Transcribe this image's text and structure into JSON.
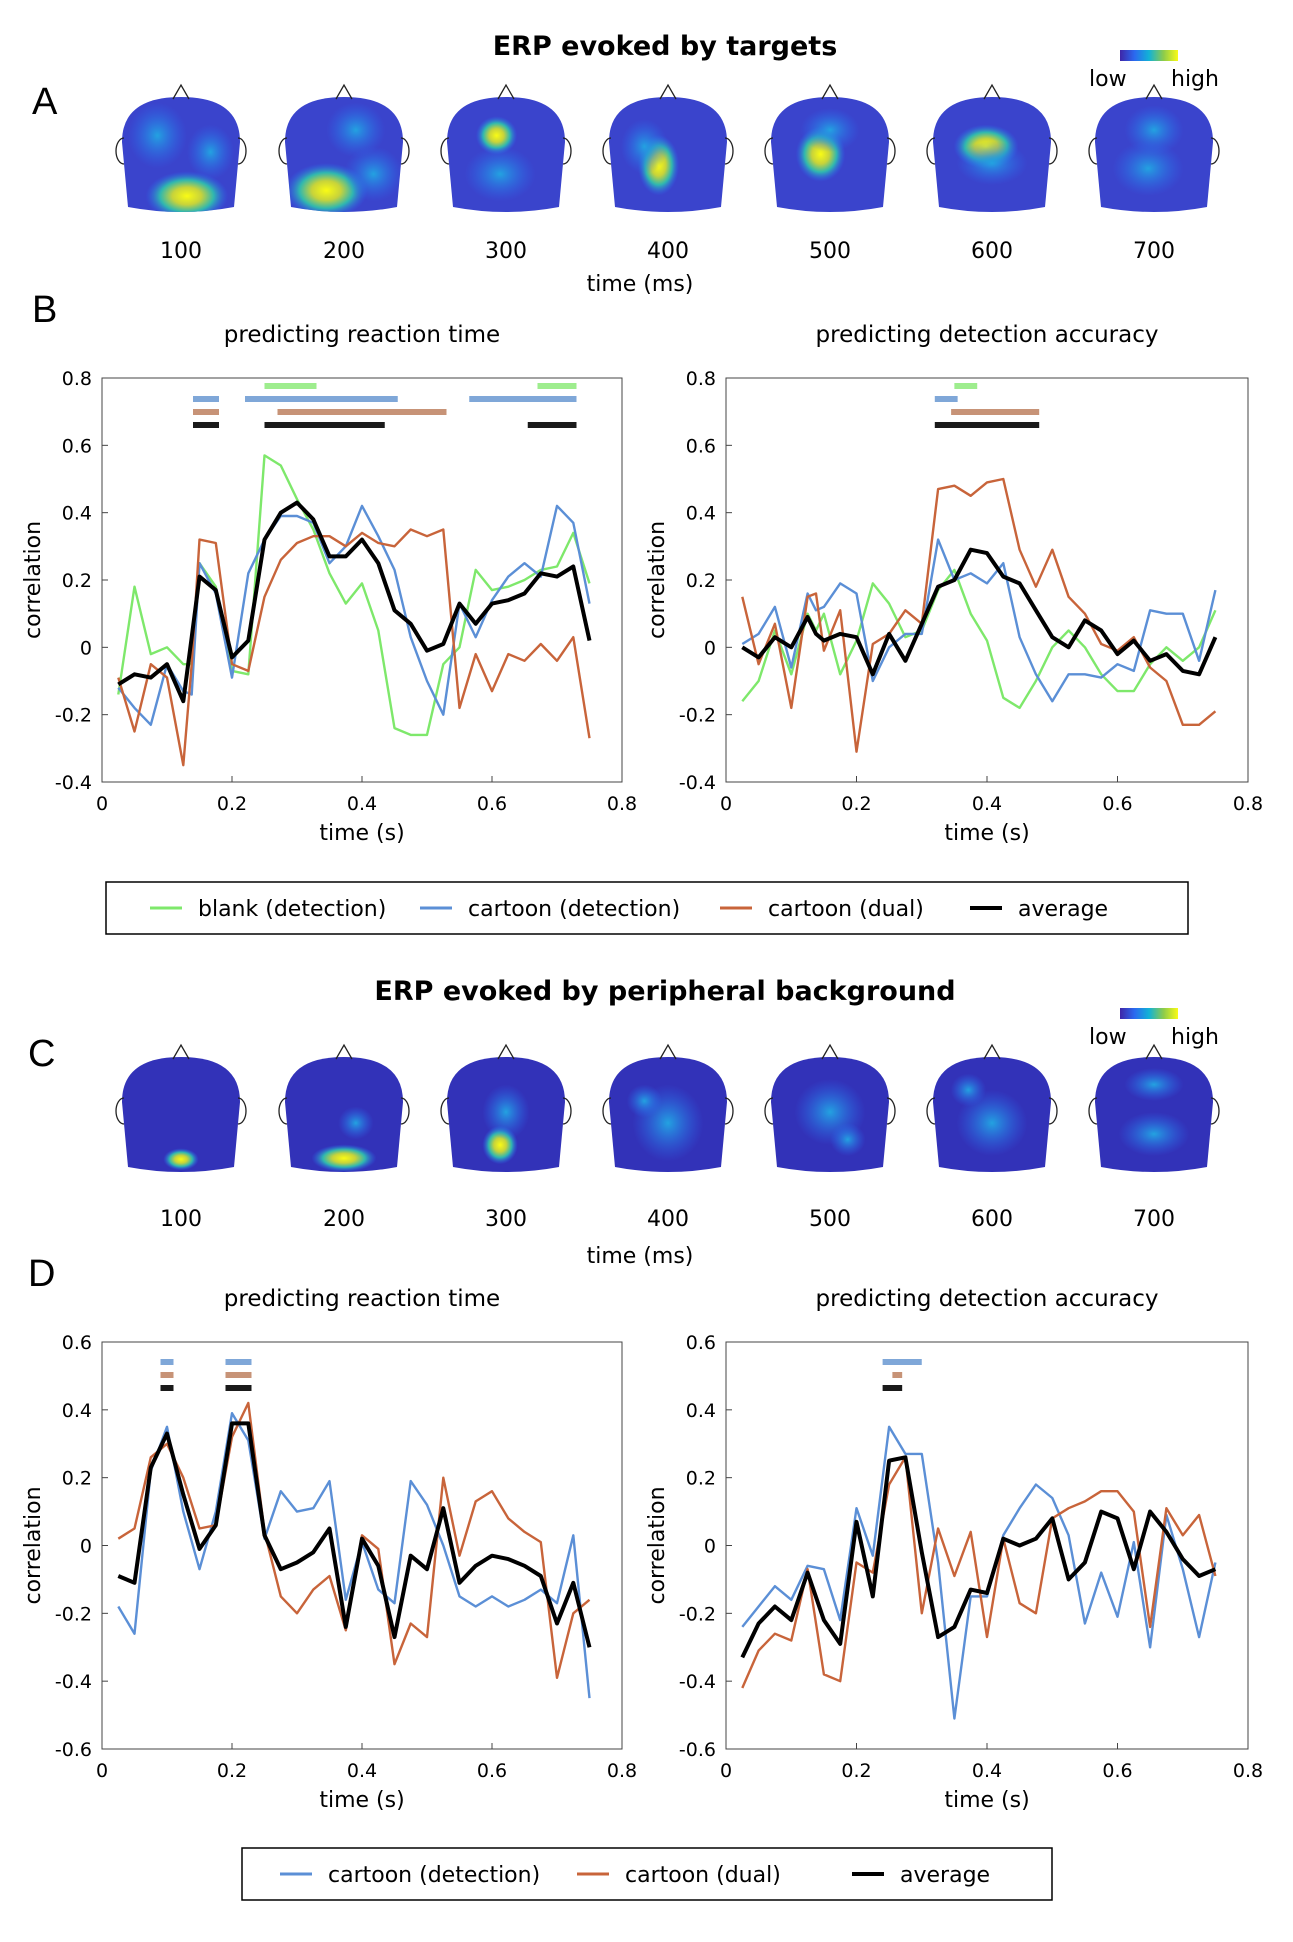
{
  "colors": {
    "blank": "#7ee86b",
    "cartoon_detection": "#5b8fd6",
    "cartoon_dual": "#c8643a",
    "average": "#000000",
    "cartoon_detection_sig": "#7fa7d8",
    "cartoon_dual_sig": "#c79377",
    "average_sig": "#1a1a1a",
    "blank_sig": "#9eed8e"
  },
  "sections": [
    {
      "title": "ERP evoked by targets",
      "topo_letter": "A",
      "plot_letter": "B",
      "colorbar": {
        "low": "low",
        "high": "high"
      },
      "time_labels": [
        "100",
        "200",
        "300",
        "400",
        "500",
        "600",
        "700"
      ],
      "time_axis_label": "time (ms)",
      "legend": [
        "blank (detection)",
        "cartoon (detection)",
        "cartoon (dual)",
        "average"
      ]
    },
    {
      "title": "ERP evoked by peripheral background",
      "topo_letter": "C",
      "plot_letter": "D",
      "colorbar": {
        "low": "low",
        "high": "high"
      },
      "time_labels": [
        "100",
        "200",
        "300",
        "400",
        "500",
        "600",
        "700"
      ],
      "time_axis_label": "time (ms)",
      "legend": [
        "cartoon (detection)",
        "cartoon (dual)",
        "average"
      ]
    }
  ],
  "chart_data": [
    {
      "type": "line",
      "title": "predicting reaction time",
      "xlabel": "time (s)",
      "ylabel": "correlation",
      "xlim": [
        0,
        0.8
      ],
      "ylim": [
        -0.4,
        0.8
      ],
      "xticks": [
        0,
        0.2,
        0.4,
        0.6,
        0.8
      ],
      "yticks": [
        -0.4,
        -0.2,
        0,
        0.2,
        0.4,
        0.6,
        0.8
      ],
      "x": [
        0.025,
        0.05,
        0.075,
        0.1,
        0.125,
        0.138,
        0.15,
        0.175,
        0.2,
        0.225,
        0.25,
        0.275,
        0.3,
        0.325,
        0.35,
        0.375,
        0.4,
        0.425,
        0.45,
        0.475,
        0.5,
        0.525,
        0.55,
        0.575,
        0.6,
        0.625,
        0.65,
        0.675,
        0.7,
        0.725,
        0.75
      ],
      "series": [
        {
          "name": "blank (detection)",
          "key": "blank",
          "values": [
            -0.14,
            0.18,
            -0.02,
            0.0,
            -0.05,
            -0.05,
            0.25,
            0.18,
            -0.07,
            -0.08,
            0.57,
            0.54,
            0.44,
            0.35,
            0.22,
            0.13,
            0.19,
            0.05,
            -0.24,
            -0.26,
            -0.26,
            -0.05,
            0.0,
            0.23,
            0.17,
            0.18,
            0.2,
            0.23,
            0.24,
            0.34,
            0.19
          ]
        },
        {
          "name": "cartoon (detection)",
          "key": "cartoon_detection",
          "values": [
            -0.12,
            -0.18,
            -0.23,
            -0.05,
            -0.13,
            -0.14,
            0.25,
            0.16,
            -0.09,
            0.22,
            0.32,
            0.39,
            0.39,
            0.37,
            0.25,
            0.3,
            0.42,
            0.33,
            0.23,
            0.03,
            -0.1,
            -0.2,
            0.13,
            0.03,
            0.14,
            0.21,
            0.25,
            0.21,
            0.42,
            0.37,
            0.13
          ]
        },
        {
          "name": "cartoon (dual)",
          "key": "cartoon_dual",
          "values": [
            -0.09,
            -0.25,
            -0.05,
            -0.09,
            -0.35,
            -0.05,
            0.32,
            0.31,
            -0.05,
            -0.07,
            0.15,
            0.26,
            0.31,
            0.33,
            0.33,
            0.3,
            0.34,
            0.31,
            0.3,
            0.35,
            0.33,
            0.35,
            -0.18,
            -0.02,
            -0.13,
            -0.02,
            -0.04,
            0.01,
            -0.04,
            0.03,
            -0.27
          ]
        },
        {
          "name": "average",
          "key": "average",
          "values": [
            -0.11,
            -0.08,
            -0.09,
            -0.05,
            -0.16,
            0.03,
            0.21,
            0.17,
            -0.03,
            0.02,
            0.32,
            0.4,
            0.43,
            0.38,
            0.27,
            0.27,
            0.32,
            0.25,
            0.11,
            0.07,
            -0.01,
            0.01,
            0.13,
            0.07,
            0.13,
            0.14,
            0.16,
            0.22,
            0.21,
            0.24,
            0.02
          ]
        }
      ],
      "significance": [
        {
          "key": "blank",
          "ranges": [
            [
              0.25,
              0.33
            ],
            [
              0.67,
              0.73
            ]
          ]
        },
        {
          "key": "cartoon_detection",
          "ranges": [
            [
              0.14,
              0.18
            ],
            [
              0.22,
              0.455
            ],
            [
              0.565,
              0.73
            ]
          ]
        },
        {
          "key": "cartoon_dual",
          "ranges": [
            [
              0.14,
              0.18
            ],
            [
              0.27,
              0.53
            ]
          ]
        },
        {
          "key": "average",
          "ranges": [
            [
              0.14,
              0.18
            ],
            [
              0.25,
              0.435
            ],
            [
              0.655,
              0.73
            ]
          ]
        }
      ]
    },
    {
      "type": "line",
      "title": "predicting detection accuracy",
      "xlabel": "time (s)",
      "ylabel": "correlation",
      "xlim": [
        0,
        0.8
      ],
      "ylim": [
        -0.4,
        0.8
      ],
      "xticks": [
        0,
        0.2,
        0.4,
        0.6,
        0.8
      ],
      "yticks": [
        -0.4,
        -0.2,
        0,
        0.2,
        0.4,
        0.6,
        0.8
      ],
      "x": [
        0.025,
        0.05,
        0.075,
        0.1,
        0.125,
        0.138,
        0.15,
        0.175,
        0.2,
        0.225,
        0.25,
        0.275,
        0.3,
        0.325,
        0.35,
        0.375,
        0.4,
        0.425,
        0.45,
        0.475,
        0.5,
        0.525,
        0.55,
        0.575,
        0.6,
        0.625,
        0.65,
        0.675,
        0.7,
        0.725,
        0.75
      ],
      "series": [
        {
          "name": "blank (detection)",
          "key": "blank",
          "values": [
            -0.16,
            -0.1,
            0.05,
            -0.08,
            0.1,
            0.05,
            0.1,
            -0.08,
            0.02,
            0.19,
            0.13,
            0.03,
            0.05,
            0.17,
            0.23,
            0.1,
            0.02,
            -0.15,
            -0.18,
            -0.1,
            0.0,
            0.05,
            0.0,
            -0.08,
            -0.13,
            -0.13,
            -0.05,
            0.0,
            -0.04,
            0.0,
            0.11
          ]
        },
        {
          "name": "cartoon (detection)",
          "key": "cartoon_detection",
          "values": [
            0.01,
            0.04,
            0.12,
            -0.06,
            0.16,
            0.11,
            0.12,
            0.19,
            0.16,
            -0.1,
            0.0,
            0.04,
            0.04,
            0.32,
            0.2,
            0.22,
            0.19,
            0.25,
            0.03,
            -0.08,
            -0.16,
            -0.08,
            -0.08,
            -0.09,
            -0.05,
            -0.07,
            0.11,
            0.1,
            0.1,
            -0.04,
            0.17
          ]
        },
        {
          "name": "cartoon (dual)",
          "key": "cartoon_dual",
          "values": [
            0.15,
            -0.05,
            0.07,
            -0.18,
            0.15,
            0.16,
            -0.01,
            0.11,
            -0.31,
            0.01,
            0.04,
            0.11,
            0.07,
            0.47,
            0.48,
            0.45,
            0.49,
            0.5,
            0.29,
            0.18,
            0.29,
            0.15,
            0.1,
            0.01,
            -0.01,
            0.03,
            -0.06,
            -0.1,
            -0.23,
            -0.23,
            -0.19
          ]
        },
        {
          "name": "average",
          "key": "average",
          "values": [
            0.0,
            -0.03,
            0.03,
            0.0,
            0.09,
            0.04,
            0.02,
            0.04,
            0.03,
            -0.08,
            0.04,
            -0.04,
            0.07,
            0.18,
            0.2,
            0.29,
            0.28,
            0.21,
            0.19,
            0.11,
            0.03,
            0.0,
            0.08,
            0.05,
            -0.02,
            0.02,
            -0.04,
            -0.02,
            -0.07,
            -0.08,
            0.03
          ]
        }
      ],
      "significance": [
        {
          "key": "blank",
          "ranges": [
            [
              0.35,
              0.385
            ]
          ]
        },
        {
          "key": "cartoon_detection",
          "ranges": [
            [
              0.32,
              0.355
            ]
          ]
        },
        {
          "key": "cartoon_dual",
          "ranges": [
            [
              0.345,
              0.48
            ]
          ]
        },
        {
          "key": "average",
          "ranges": [
            [
              0.32,
              0.48
            ]
          ]
        }
      ]
    },
    {
      "type": "line",
      "title": "predicting reaction time",
      "xlabel": "time (s)",
      "ylabel": "correlation",
      "xlim": [
        0,
        0.8
      ],
      "ylim": [
        -0.6,
        0.6
      ],
      "xticks": [
        0,
        0.2,
        0.4,
        0.6,
        0.8
      ],
      "yticks": [
        -0.6,
        -0.4,
        -0.2,
        0,
        0.2,
        0.4,
        0.6
      ],
      "x": [
        0.025,
        0.05,
        0.075,
        0.1,
        0.125,
        0.15,
        0.175,
        0.2,
        0.225,
        0.25,
        0.275,
        0.3,
        0.325,
        0.35,
        0.375,
        0.4,
        0.425,
        0.45,
        0.475,
        0.5,
        0.525,
        0.55,
        0.575,
        0.6,
        0.625,
        0.65,
        0.675,
        0.7,
        0.725,
        0.75
      ],
      "series": [
        {
          "name": "cartoon (detection)",
          "key": "cartoon_detection",
          "values": [
            -0.18,
            -0.26,
            0.22,
            0.35,
            0.1,
            -0.07,
            0.1,
            0.39,
            0.31,
            0.02,
            0.16,
            0.1,
            0.11,
            0.19,
            -0.16,
            0.01,
            -0.13,
            -0.17,
            0.19,
            0.12,
            0.0,
            -0.15,
            -0.18,
            -0.15,
            -0.18,
            -0.16,
            -0.13,
            -0.17,
            0.03,
            -0.45
          ]
        },
        {
          "name": "cartoon (dual)",
          "key": "cartoon_dual",
          "values": [
            0.02,
            0.05,
            0.26,
            0.3,
            0.2,
            0.05,
            0.06,
            0.32,
            0.42,
            0.04,
            -0.15,
            -0.2,
            -0.13,
            -0.09,
            -0.25,
            0.03,
            -0.01,
            -0.35,
            -0.23,
            -0.27,
            0.2,
            -0.03,
            0.13,
            0.16,
            0.08,
            0.04,
            0.01,
            -0.39,
            -0.2,
            -0.16
          ]
        },
        {
          "name": "average",
          "key": "average",
          "values": [
            -0.09,
            -0.11,
            0.23,
            0.33,
            0.15,
            -0.01,
            0.06,
            0.36,
            0.36,
            0.03,
            -0.07,
            -0.05,
            -0.02,
            0.05,
            -0.24,
            0.02,
            -0.06,
            -0.27,
            -0.03,
            -0.07,
            0.11,
            -0.11,
            -0.06,
            -0.03,
            -0.04,
            -0.06,
            -0.09,
            -0.23,
            -0.11,
            -0.3
          ]
        }
      ],
      "significance": [
        {
          "key": "cartoon_detection",
          "ranges": [
            [
              0.09,
              0.11
            ],
            [
              0.19,
              0.23
            ]
          ]
        },
        {
          "key": "cartoon_dual",
          "ranges": [
            [
              0.09,
              0.11
            ],
            [
              0.19,
              0.23
            ]
          ]
        },
        {
          "key": "average",
          "ranges": [
            [
              0.09,
              0.11
            ],
            [
              0.19,
              0.23
            ]
          ]
        }
      ]
    },
    {
      "type": "line",
      "title": "predicting detection accuracy",
      "xlabel": "time (s)",
      "ylabel": "correlation",
      "xlim": [
        0,
        0.8
      ],
      "ylim": [
        -0.6,
        0.6
      ],
      "xticks": [
        0,
        0.2,
        0.4,
        0.6,
        0.8
      ],
      "yticks": [
        -0.6,
        -0.4,
        -0.2,
        0,
        0.2,
        0.4,
        0.6
      ],
      "x": [
        0.025,
        0.05,
        0.075,
        0.1,
        0.125,
        0.15,
        0.175,
        0.2,
        0.225,
        0.25,
        0.275,
        0.3,
        0.325,
        0.35,
        0.375,
        0.4,
        0.425,
        0.45,
        0.475,
        0.5,
        0.525,
        0.55,
        0.575,
        0.6,
        0.625,
        0.65,
        0.675,
        0.7,
        0.725,
        0.75
      ],
      "series": [
        {
          "name": "cartoon (detection)",
          "key": "cartoon_detection",
          "values": [
            -0.24,
            -0.18,
            -0.12,
            -0.16,
            -0.06,
            -0.07,
            -0.22,
            0.11,
            -0.03,
            0.35,
            0.27,
            0.27,
            -0.05,
            -0.51,
            -0.15,
            -0.15,
            0.03,
            0.11,
            0.18,
            0.14,
            0.03,
            -0.23,
            -0.08,
            -0.21,
            0.01,
            -0.3,
            0.09,
            -0.07,
            -0.27,
            -0.05
          ]
        },
        {
          "name": "cartoon (dual)",
          "key": "cartoon_dual",
          "values": [
            -0.42,
            -0.31,
            -0.26,
            -0.28,
            -0.07,
            -0.38,
            -0.4,
            -0.05,
            -0.08,
            0.18,
            0.26,
            -0.2,
            0.05,
            -0.09,
            0.04,
            -0.27,
            0.02,
            -0.17,
            -0.2,
            0.08,
            0.11,
            0.13,
            0.16,
            0.16,
            0.1,
            -0.24,
            0.11,
            0.03,
            0.09,
            -0.09
          ]
        },
        {
          "name": "average",
          "key": "average",
          "values": [
            -0.33,
            -0.23,
            -0.18,
            -0.22,
            -0.08,
            -0.22,
            -0.29,
            0.07,
            -0.15,
            0.25,
            0.26,
            -0.02,
            -0.27,
            -0.24,
            -0.13,
            -0.14,
            0.02,
            0.0,
            0.02,
            0.08,
            -0.1,
            -0.05,
            0.1,
            0.08,
            -0.07,
            0.1,
            0.04,
            -0.04,
            -0.09,
            -0.07
          ]
        }
      ],
      "significance": [
        {
          "key": "cartoon_detection",
          "ranges": [
            [
              0.24,
              0.3
            ]
          ]
        },
        {
          "key": "cartoon_dual",
          "ranges": [
            [
              0.255,
              0.27
            ]
          ]
        },
        {
          "key": "average",
          "ranges": [
            [
              0.24,
              0.27
            ]
          ]
        }
      ]
    }
  ]
}
